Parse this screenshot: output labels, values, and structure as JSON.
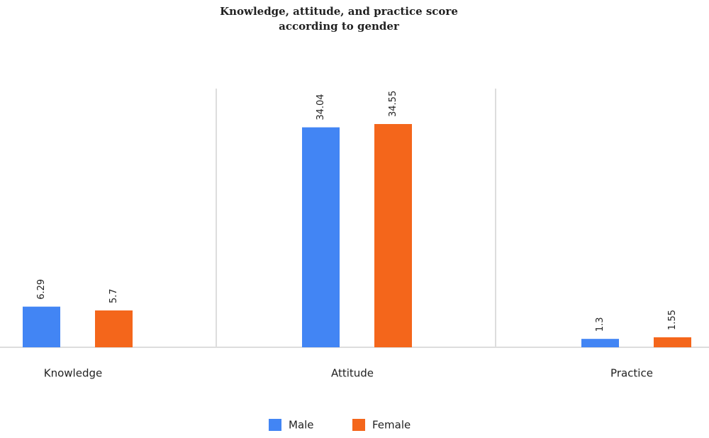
{
  "chart_data": {
    "type": "bar",
    "title": "Knowledge, attitude, and practice score according to gender",
    "categories": [
      "Knowledge",
      "Attitude",
      "Practice"
    ],
    "series": [
      {
        "name": "Male",
        "color": "#4285f4",
        "values": [
          6.29,
          34.04,
          1.3
        ]
      },
      {
        "name": "Female",
        "color": "#f4661b",
        "values": [
          5.7,
          34.55,
          1.55
        ]
      }
    ]
  }
}
